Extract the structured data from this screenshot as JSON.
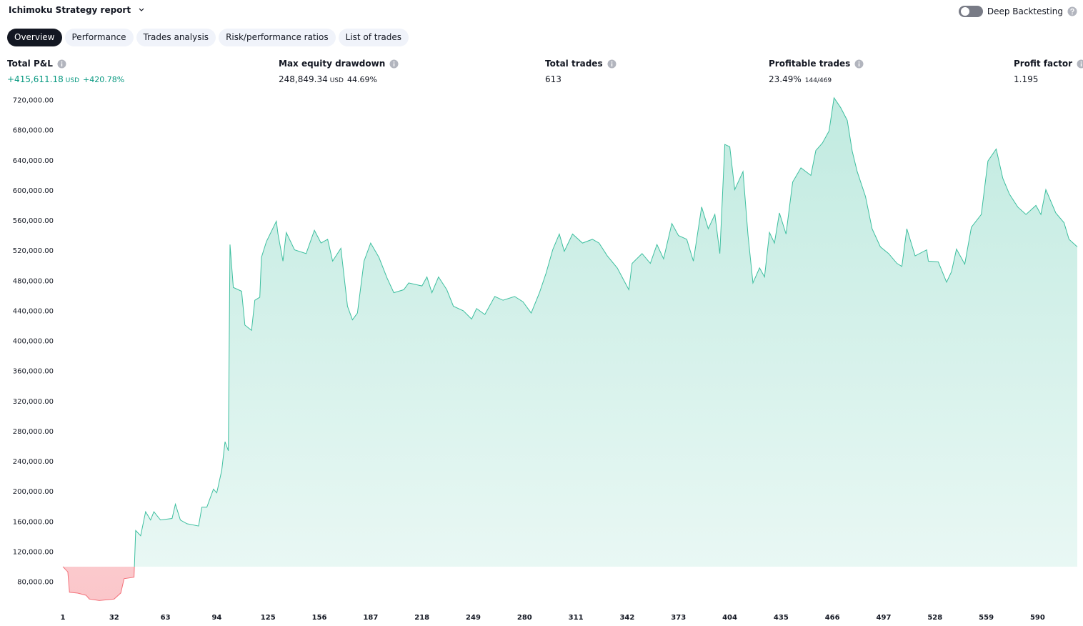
{
  "header": {
    "title": "Ichimoku Strategy report",
    "toggle_label": "Deep Backtesting"
  },
  "tabs": [
    "Overview",
    "Performance",
    "Trades analysis",
    "Risk/performance ratios",
    "List of trades"
  ],
  "metrics": [
    {
      "label": "Total P&L",
      "value": "+415,611.18",
      "unit": "USD",
      "extra": "+420.78%"
    },
    {
      "label": "Max equity drawdown",
      "value": "248,849.34",
      "unit": "USD",
      "extra": "44.69%"
    },
    {
      "label": "Total trades",
      "value": "613"
    },
    {
      "label": "Profitable trades",
      "value": "23.49%",
      "extra": "144/469"
    },
    {
      "label": "Profit factor",
      "value": "1.195"
    }
  ],
  "chart_data": {
    "type": "area",
    "color": "#3dbf9f",
    "negative_color": "#f4717a",
    "x": [
      1,
      4,
      5,
      10,
      15,
      17,
      23,
      32,
      36,
      38,
      44,
      45,
      48,
      51,
      54,
      56,
      60,
      67,
      69,
      72,
      76,
      83,
      85,
      88,
      92,
      94,
      97,
      99,
      101,
      102,
      104,
      109,
      111,
      115,
      117,
      120,
      121,
      124,
      130,
      131,
      134,
      136,
      141,
      148,
      153,
      157,
      161,
      164,
      169,
      173,
      176,
      179,
      183,
      187,
      192,
      197,
      201,
      207,
      210,
      218,
      221,
      224,
      228,
      233,
      237,
      243,
      248,
      251,
      256,
      262,
      267,
      274,
      279,
      284,
      289,
      293,
      297,
      301,
      304,
      309,
      315,
      321,
      325,
      330,
      336,
      343,
      345,
      351,
      356,
      360,
      364,
      369,
      373,
      378,
      382,
      387,
      391,
      395,
      398,
      401,
      404,
      407,
      412,
      415,
      418,
      422,
      425,
      428,
      431,
      434,
      438,
      442,
      447,
      453,
      456,
      460,
      464,
      467,
      471,
      475,
      478,
      481,
      486,
      490,
      495,
      500,
      505,
      508,
      511,
      516,
      523,
      524,
      530,
      535,
      538,
      541,
      546,
      550,
      556,
      560,
      565,
      569,
      573,
      578,
      583,
      589,
      592,
      595,
      601,
      606,
      609,
      614
    ],
    "values": [
      100000,
      93000,
      66000,
      64800,
      62000,
      57000,
      55000,
      57000,
      65000,
      84000,
      86000,
      148000,
      141000,
      173000,
      162000,
      173000,
      162000,
      164000,
      183000,
      162000,
      157000,
      154000,
      179000,
      179000,
      203000,
      198000,
      228000,
      266000,
      254000,
      528000,
      471000,
      466000,
      421000,
      414000,
      454000,
      458000,
      511000,
      532000,
      559000,
      542000,
      506000,
      544000,
      521000,
      516000,
      547000,
      530000,
      535000,
      506000,
      523000,
      446000,
      428000,
      437000,
      506000,
      530000,
      511000,
      483000,
      464000,
      468000,
      477000,
      473000,
      485000,
      464000,
      485000,
      468000,
      446000,
      440000,
      429000,
      443000,
      435000,
      459000,
      454000,
      459000,
      452000,
      437000,
      464000,
      490000,
      521000,
      542000,
      519000,
      542000,
      530000,
      535000,
      530000,
      513000,
      497000,
      468000,
      503000,
      516000,
      503000,
      528000,
      509000,
      556000,
      540000,
      535000,
      506000,
      578000,
      549000,
      568000,
      516000,
      661000,
      658000,
      601000,
      625000,
      541000,
      477000,
      497000,
      485000,
      544000,
      530000,
      570000,
      542000,
      611000,
      630000,
      620000,
      653000,
      663000,
      679000,
      723000,
      710000,
      693000,
      652000,
      625000,
      592000,
      549000,
      525000,
      516000,
      503000,
      499000,
      549000,
      513000,
      521000,
      506000,
      505000,
      478000,
      492000,
      522000,
      502000,
      551000,
      568000,
      639000,
      655000,
      616000,
      595000,
      578000,
      568000,
      580000,
      568000,
      601000,
      570000,
      557000,
      535000,
      525000
    ],
    "xlim": [
      1,
      614
    ],
    "xticks": [
      1,
      32,
      63,
      94,
      125,
      156,
      187,
      218,
      249,
      280,
      311,
      342,
      373,
      404,
      435,
      466,
      497,
      528,
      559,
      590
    ],
    "ylim": [
      50000,
      730000
    ],
    "yticks": [
      {
        "value": 80000,
        "label": "80,000.00"
      },
      {
        "value": 120000,
        "label": "120,000.00"
      },
      {
        "value": 160000,
        "label": "160,000.00"
      },
      {
        "value": 200000,
        "label": "200,000.00"
      },
      {
        "value": 240000,
        "label": "240,000.00"
      },
      {
        "value": 280000,
        "label": "280,000.00"
      },
      {
        "value": 320000,
        "label": "320,000.00"
      },
      {
        "value": 360000,
        "label": "360,000.00"
      },
      {
        "value": 400000,
        "label": "400,000.00"
      },
      {
        "value": 440000,
        "label": "440,000.00"
      },
      {
        "value": 480000,
        "label": "480,000.00"
      },
      {
        "value": 520000,
        "label": "520,000.00"
      },
      {
        "value": 560000,
        "label": "560,000.00"
      },
      {
        "value": 600000,
        "label": "600,000.00"
      },
      {
        "value": 640000,
        "label": "640,000.00"
      },
      {
        "value": 680000,
        "label": "680,000.00"
      },
      {
        "value": 720000,
        "label": "720,000.00"
      }
    ]
  }
}
